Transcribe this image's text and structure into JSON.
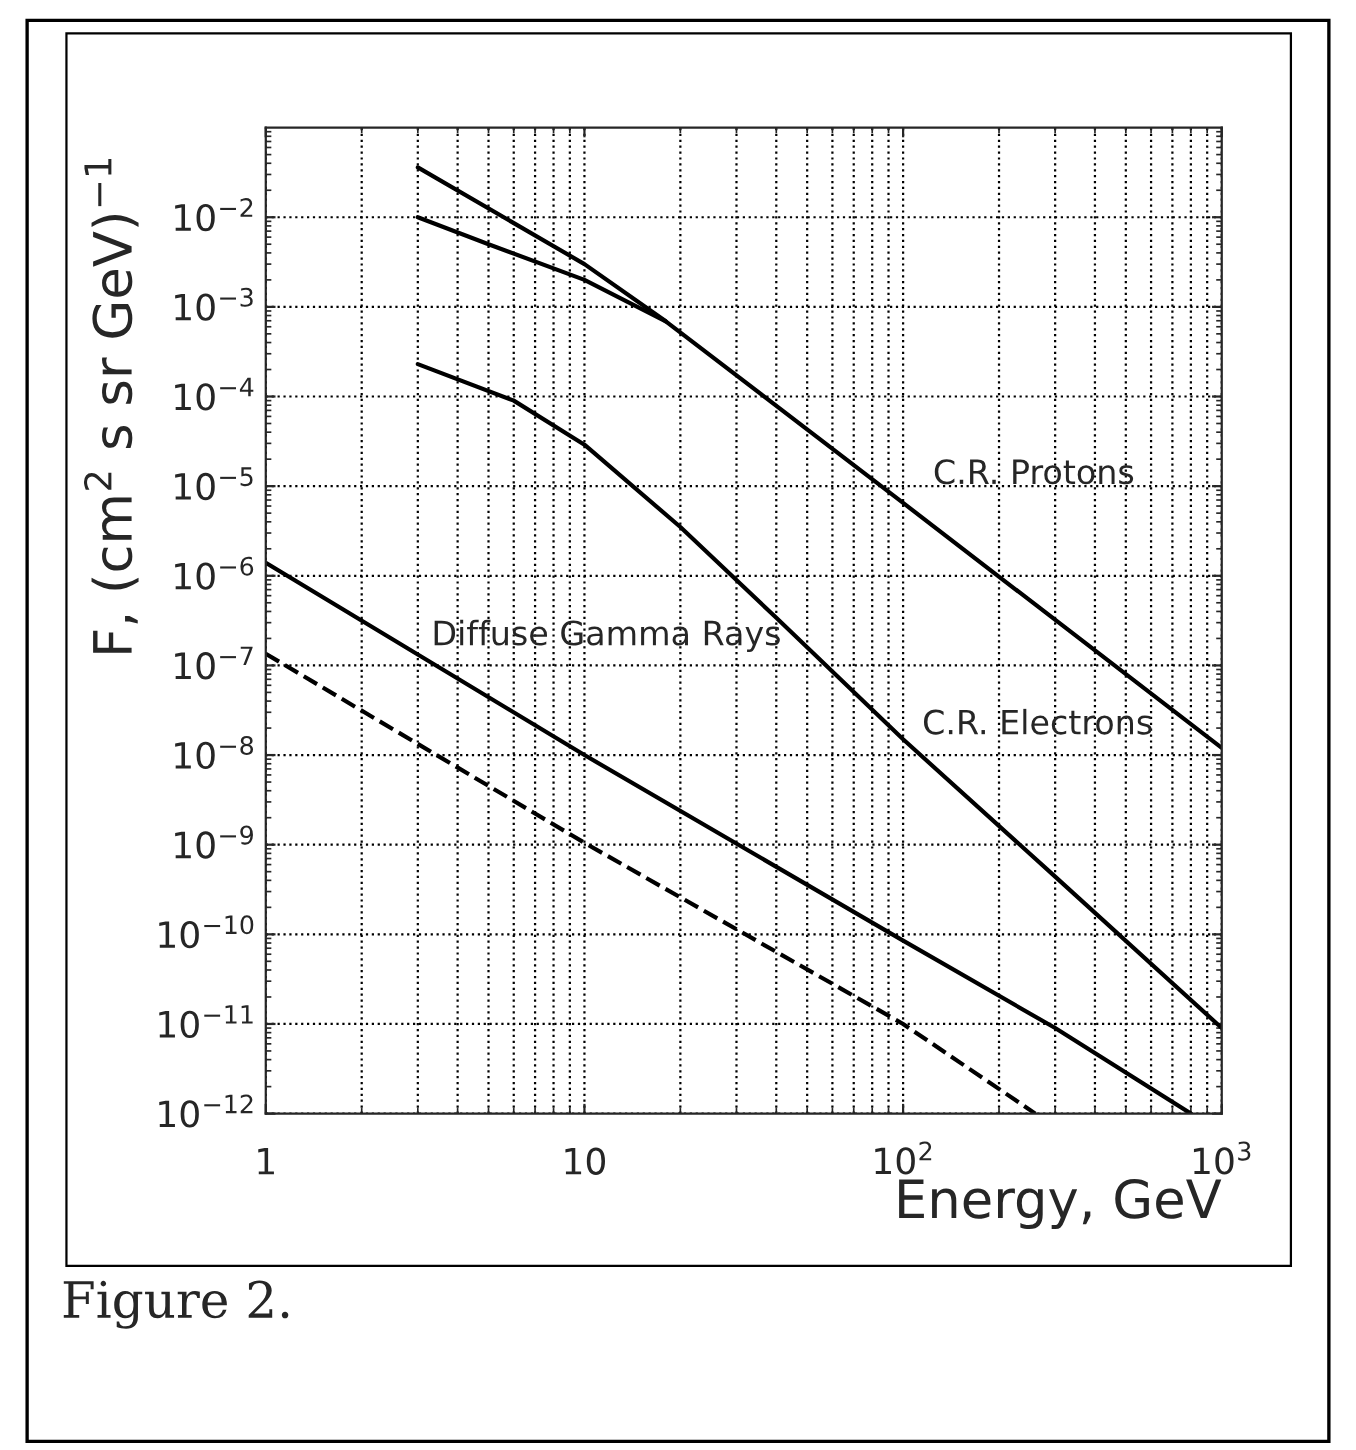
{
  "chart_data": {
    "type": "line",
    "xlabel": "Energy, GeV",
    "ylabel": "F, (cm$^{2}$ s sr GeV)$^{−1}$",
    "log": "xy",
    "grid": true,
    "line_style": "solid",
    "xlim": [
      1,
      1000
    ],
    "ylim": [
      1e-12,
      0.1
    ],
    "xticks": [
      1,
      10,
      {
        "value": 100,
        "label": "10$^{2}$"
      },
      {
        "value": 1000,
        "label": "10$^{3}$"
      }
    ],
    "yticks": [
      {
        "value": 1e-12,
        "label": "10$^{−12}$"
      },
      {
        "value": 1e-11,
        "label": "10$^{−11}$"
      },
      {
        "value": 1e-10,
        "label": "10$^{−10}$"
      },
      {
        "value": 1e-09,
        "label": "10$^{−9}$"
      },
      {
        "value": 1e-08,
        "label": "10$^{−8}$"
      },
      {
        "value": 1e-07,
        "label": "10$^{−7}$"
      },
      {
        "value": 1e-06,
        "label": "10$^{−6}$"
      },
      {
        "value": 1e-05,
        "label": "10$^{−5}$"
      },
      {
        "value": 0.0001,
        "label": "10$^{−4}$"
      },
      {
        "value": 0.001,
        "label": "10$^{−3}$"
      },
      {
        "value": 0.01,
        "label": "10$^{−2}$"
      }
    ],
    "series": [
      {
        "name": "C.R. Protons",
        "color": "#000000",
        "x": [
          3,
          10,
          18,
          100,
          1000
        ],
        "values": [
          0.036,
          0.003,
          0.00069,
          6.5e-06,
          1.2e-08
        ]
      },
      {
        "color": "#000000",
        "x": [
          3,
          5,
          10,
          18
        ],
        "values": [
          0.01,
          0.005,
          0.002,
          0.00069
        ]
      },
      {
        "name": "C.R. Electrons",
        "color": "#000000",
        "x": [
          3,
          6,
          10,
          20,
          40,
          100,
          300,
          1000
        ],
        "values": [
          0.00023,
          9e-05,
          2.9e-05,
          3.5e-06,
          3.4e-07,
          1.5e-08,
          4.4e-10,
          9e-12
        ]
      },
      {
        "name": "Diffuse Gamma Rays",
        "color": "#000000",
        "x": [
          1,
          10,
          100,
          300,
          800
        ],
        "values": [
          1.4e-06,
          1e-08,
          8.5e-11,
          9e-12,
          1e-12
        ]
      },
      {
        "color": "#000000",
        "line_style": "dashed",
        "x": [
          1,
          10,
          100,
          260
        ],
        "values": [
          1.35e-07,
          1.05e-09,
          1e-11,
          1e-12
        ]
      }
    ],
    "annotations": [
      "Figure 2."
    ]
  }
}
